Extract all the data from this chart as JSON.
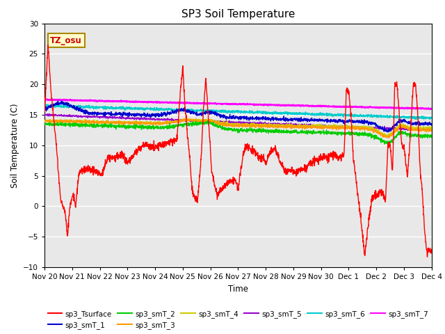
{
  "title": "SP3 Soil Temperature",
  "ylabel": "Soil Temperature (C)",
  "xlabel": "Time",
  "xlim_start": 0,
  "xlim_end": 336,
  "ylim": [
    -10,
    30
  ],
  "yticks": [
    -10,
    -5,
    0,
    5,
    10,
    15,
    20,
    25,
    30
  ],
  "xtick_labels": [
    "Nov 20",
    "Nov 21",
    "Nov 22",
    "Nov 23",
    "Nov 24",
    "Nov 25",
    "Nov 26",
    "Nov 27",
    "Nov 28",
    "Nov 29",
    "Nov 30",
    "Dec 1",
    "Dec 2",
    "Dec 3",
    "Dec 4"
  ],
  "xtick_positions": [
    0,
    24,
    48,
    72,
    96,
    120,
    144,
    168,
    192,
    216,
    240,
    264,
    288,
    312,
    336
  ],
  "bg_color": "#e8e8e8",
  "grid_color": "white",
  "annotation_text": "TZ_osu",
  "annotation_color": "#cc0000",
  "annotation_bg": "#ffffcc",
  "annotation_border": "#aa8800",
  "series_colors": {
    "sp3_Tsurface": "#ff0000",
    "sp3_smT_1": "#0000cc",
    "sp3_smT_2": "#00cc00",
    "sp3_smT_3": "#ff9900",
    "sp3_smT_4": "#cccc00",
    "sp3_smT_5": "#9900cc",
    "sp3_smT_6": "#00cccc",
    "sp3_smT_7": "#ff00ff"
  }
}
